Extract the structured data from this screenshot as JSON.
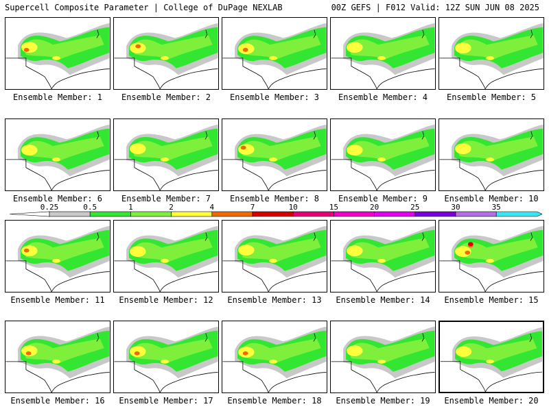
{
  "header": {
    "left": "Supercell Composite Parameter | College of DuPage NEXLAB",
    "right": "00Z GEFS | F012 Valid: 12Z SUN JUN 08 2025"
  },
  "members": [
    {
      "label": "Ensemble Member: 1",
      "hot": [
        [
          0.2,
          0.45,
          "#ef6a00"
        ]
      ]
    },
    {
      "label": "Ensemble Member: 2",
      "hot": [
        [
          0.23,
          0.4,
          "#ef6a00"
        ]
      ]
    },
    {
      "label": "Ensemble Member: 3",
      "hot": [
        [
          0.22,
          0.45,
          "#ef6a00"
        ]
      ]
    },
    {
      "label": "Ensemble Member: 4",
      "hot": []
    },
    {
      "label": "Ensemble Member: 5",
      "hot": []
    },
    {
      "label": "Ensemble Member: 6",
      "hot": []
    },
    {
      "label": "Ensemble Member: 7",
      "hot": []
    },
    {
      "label": "Ensemble Member: 8",
      "hot": [
        [
          0.2,
          0.4,
          "#ef6a00"
        ]
      ]
    },
    {
      "label": "Ensemble Member: 9",
      "hot": []
    },
    {
      "label": "Ensemble Member: 10",
      "hot": []
    },
    {
      "label": "Ensemble Member: 11",
      "hot": [
        [
          0.2,
          0.42,
          "#ef6a00"
        ]
      ]
    },
    {
      "label": "Ensemble Member: 12",
      "hot": []
    },
    {
      "label": "Ensemble Member: 13",
      "hot": []
    },
    {
      "label": "Ensemble Member: 14",
      "hot": []
    },
    {
      "label": "Ensemble Member: 15",
      "hot": [
        [
          0.3,
          0.35,
          "#ef6a00"
        ],
        [
          0.27,
          0.45,
          "#ef6a00"
        ],
        [
          0.3,
          0.33,
          "#d60000"
        ]
      ]
    },
    {
      "label": "Ensemble Member: 16",
      "hot": [
        [
          0.22,
          0.45,
          "#ef6a00"
        ]
      ]
    },
    {
      "label": "Ensemble Member: 17",
      "hot": [
        [
          0.22,
          0.45,
          "#ef6a00"
        ]
      ]
    },
    {
      "label": "Ensemble Member: 18",
      "hot": [
        [
          0.22,
          0.45,
          "#ef6a00"
        ]
      ]
    },
    {
      "label": "Ensemble Member: 19",
      "hot": []
    },
    {
      "label": "Ensemble Member: 20",
      "hot": [],
      "selected": true
    }
  ],
  "colorbar": {
    "labels": [
      "0.25",
      "0.5",
      "1",
      "2",
      "4",
      "7",
      "10",
      "15",
      "20",
      "25",
      "30",
      "35"
    ],
    "colors": [
      "#c8c8c8",
      "#32e632",
      "#7ef03c",
      "#ffff3c",
      "#ef6a00",
      "#d60000",
      "#e6007a",
      "#f000c8",
      "#e100f0",
      "#7a00dc",
      "#b46ee6",
      "#39e6f0"
    ]
  }
}
